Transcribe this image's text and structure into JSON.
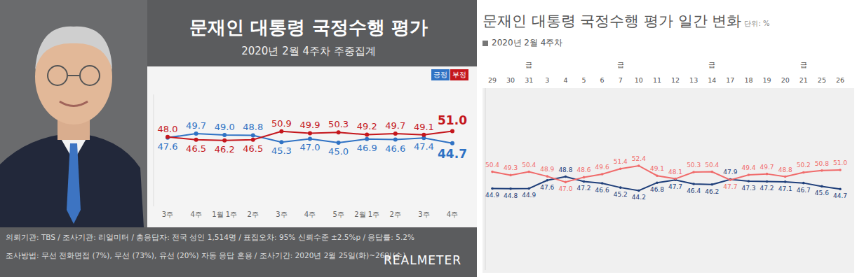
{
  "chart_data": [
    {
      "type": "line",
      "title": "문재인 대통령 국정수행 평가",
      "subtitle": "2020년 2월 4주차 주중집계",
      "categories": [
        "3주",
        "4주",
        "1월 1주",
        "2주",
        "3주",
        "4주",
        "5주",
        "2월 1주",
        "2주",
        "3주",
        "4주"
      ],
      "series": [
        {
          "name": "긍정",
          "color": "#2f72c4",
          "marker": "circle",
          "values": [
            47.6,
            49.7,
            49.0,
            48.8,
            45.3,
            47.0,
            45.0,
            46.9,
            46.6,
            47.4,
            44.7
          ]
        },
        {
          "name": "부정",
          "color": "#c4161c",
          "marker": "circle",
          "values": [
            48.0,
            46.5,
            46.2,
            46.5,
            50.9,
            49.9,
            50.3,
            49.2,
            49.7,
            49.1,
            51.0
          ]
        }
      ],
      "ylim": [
        12,
        70
      ],
      "tick_labels": "x",
      "data_labels": true,
      "legend": "upper right",
      "notes": [
        "의뢰기관: TBS / 조사기관: 리얼미터 / 총응답자: 전국 성인 1,514명 / 표집오차: 95% 신뢰수준 ±2.5%p / 응답률: 5.2%",
        "조사방법: 무선 전화면접 (7%), 무선 (73%), 유선 (20%) 자동 응답 혼용 / 조사기간: 2020년 2월 25일(화)~26일(수)"
      ],
      "brand": "REALMETER"
    },
    {
      "type": "line",
      "title": "문재인 대통령 국정수행 평가 일간 변화",
      "unit": "단위: %",
      "subtitle": "2020년 2월 4주차",
      "categories": [
        "29",
        "30",
        "31",
        "3",
        "4",
        "5",
        "6",
        "7",
        "10",
        "11",
        "12",
        "13",
        "14",
        "17",
        "18",
        "19",
        "20",
        "21",
        "25",
        "26"
      ],
      "weekday_labels": [
        null,
        null,
        "금",
        null,
        null,
        null,
        null,
        "금",
        null,
        null,
        null,
        null,
        "금",
        null,
        null,
        null,
        null,
        "금",
        null,
        null
      ],
      "series": [
        {
          "name": "긍정",
          "color": "#1f3f7a",
          "marker": "circle",
          "values": [
            44.9,
            44.8,
            44.9,
            47.6,
            48.8,
            47.2,
            46.6,
            45.2,
            44.2,
            46.8,
            47.7,
            46.4,
            46.2,
            47.9,
            47.3,
            47.2,
            47.1,
            46.7,
            45.6,
            44.7
          ]
        },
        {
          "name": "부정",
          "color": "#f06b6b",
          "marker": "circle",
          "values": [
            50.4,
            49.3,
            50.4,
            48.9,
            47.0,
            48.6,
            49.6,
            51.4,
            52.4,
            49.1,
            48.1,
            50.3,
            50.4,
            47.7,
            49.4,
            49.7,
            48.8,
            50.2,
            50.8,
            51.0
          ]
        }
      ],
      "ylim": [
        18,
        78
      ],
      "tick_labels": "x",
      "data_labels": true
    }
  ]
}
